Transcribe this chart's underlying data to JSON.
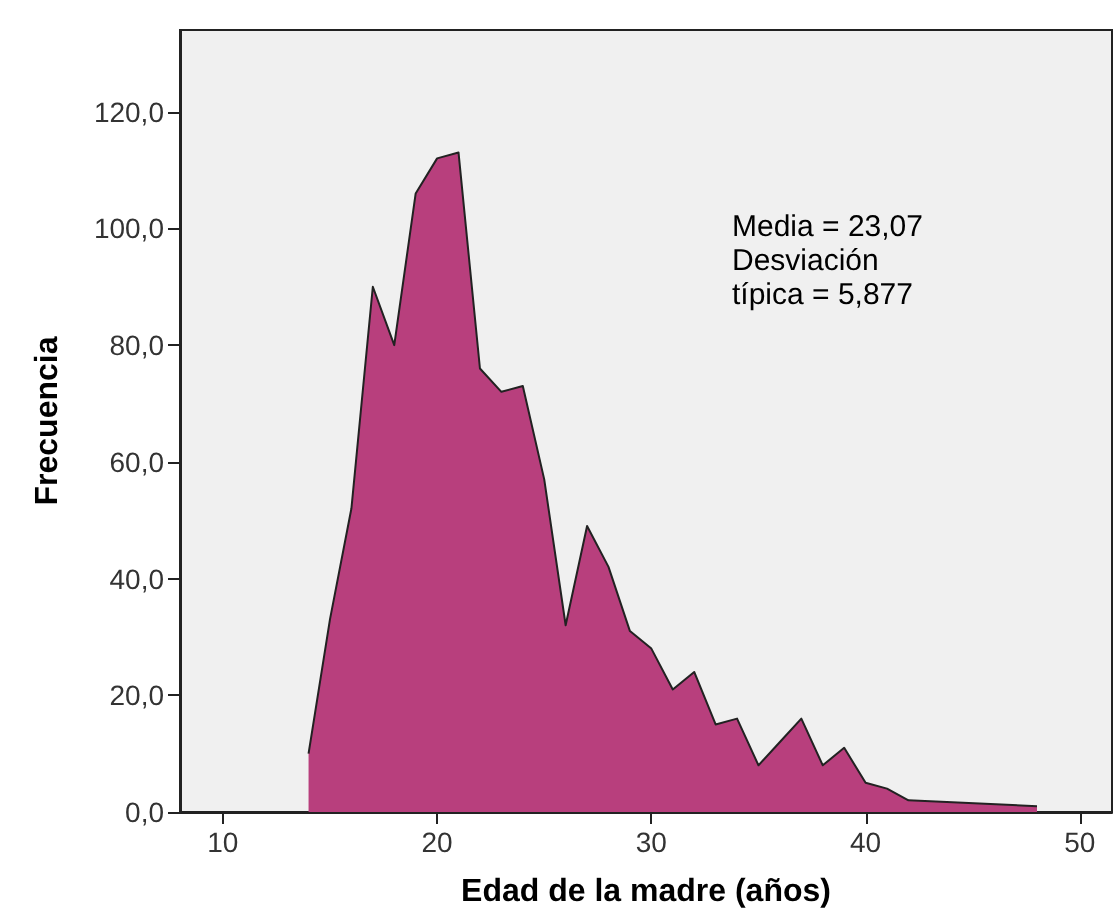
{
  "chart_data": {
    "type": "area",
    "xlabel": "Edad de la madre (años)",
    "ylabel": "Frecuencia",
    "series": [
      {
        "color": "#b83f7d",
        "x": [
          14,
          15,
          16,
          17,
          18,
          19,
          20,
          21,
          22,
          23,
          24,
          25,
          26,
          27,
          28,
          29,
          30,
          31,
          32,
          33,
          34,
          35,
          36,
          37,
          38,
          39,
          40,
          41,
          42,
          48
        ],
        "values": [
          10,
          33,
          52,
          90,
          80,
          106,
          112,
          113,
          76,
          72,
          73,
          57,
          32,
          49,
          42,
          31,
          28,
          21,
          24,
          15,
          16,
          8,
          12,
          16,
          8,
          11,
          5,
          4,
          2,
          1
        ]
      }
    ],
    "xlim": [
      8,
      51.5
    ],
    "xticks": [
      10,
      20,
      30,
      40,
      50
    ],
    "ylim": [
      0,
      134
    ],
    "yticks": [
      {
        "value": 0,
        "label": "0,0"
      },
      {
        "value": 20,
        "label": "20,0"
      },
      {
        "value": 40,
        "label": "40,0"
      },
      {
        "value": 60,
        "label": "60,0"
      },
      {
        "value": 80,
        "label": "80,0"
      },
      {
        "value": 100,
        "label": "100,0"
      },
      {
        "value": 120,
        "label": "120,0"
      }
    ],
    "annotations": [
      "Media = 23,07",
      "Desviación",
      "típica = 5,877"
    ],
    "grid": false,
    "marker": "none"
  }
}
